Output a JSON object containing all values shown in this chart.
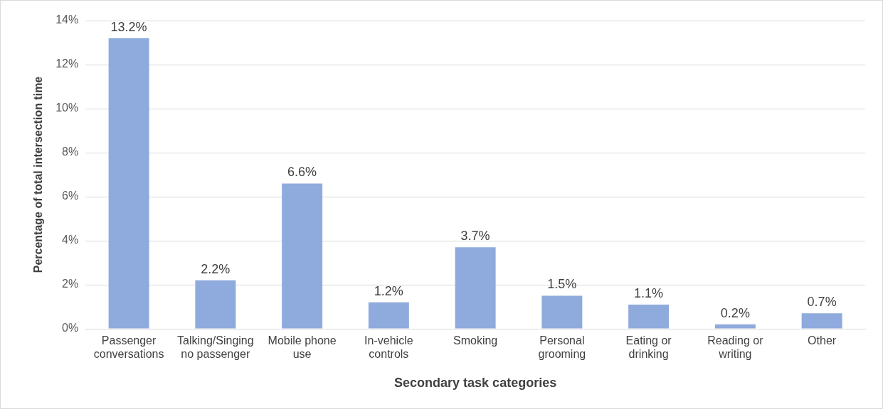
{
  "chart_data": {
    "type": "bar",
    "xlabel": "Secondary task categories",
    "ylabel": "Percentage of total intersection time",
    "categories": [
      "Passenger conversations",
      "Talking/Singing no passenger",
      "Mobile phone use",
      "In-vehicle controls",
      "Smoking",
      "Personal grooming",
      "Eating or drinking",
      "Reading or writing",
      "Other"
    ],
    "values": [
      13.2,
      2.2,
      6.6,
      1.2,
      3.7,
      1.5,
      1.1,
      0.2,
      0.7
    ],
    "value_labels": [
      "13.2%",
      "2.2%",
      "6.6%",
      "1.2%",
      "3.7%",
      "1.5%",
      "1.1%",
      "0.2%",
      "0.7%"
    ],
    "color": "#8faadc",
    "ylim": [
      0,
      14
    ],
    "yticks": [
      {
        "value": 0,
        "label": "0%"
      },
      {
        "value": 2,
        "label": "2%"
      },
      {
        "value": 4,
        "label": "4%"
      },
      {
        "value": 6,
        "label": "6%"
      },
      {
        "value": 8,
        "label": "8%"
      },
      {
        "value": 10,
        "label": "10%"
      },
      {
        "value": 12,
        "label": "12%"
      },
      {
        "value": 14,
        "label": "14%"
      }
    ],
    "grid": "y"
  }
}
